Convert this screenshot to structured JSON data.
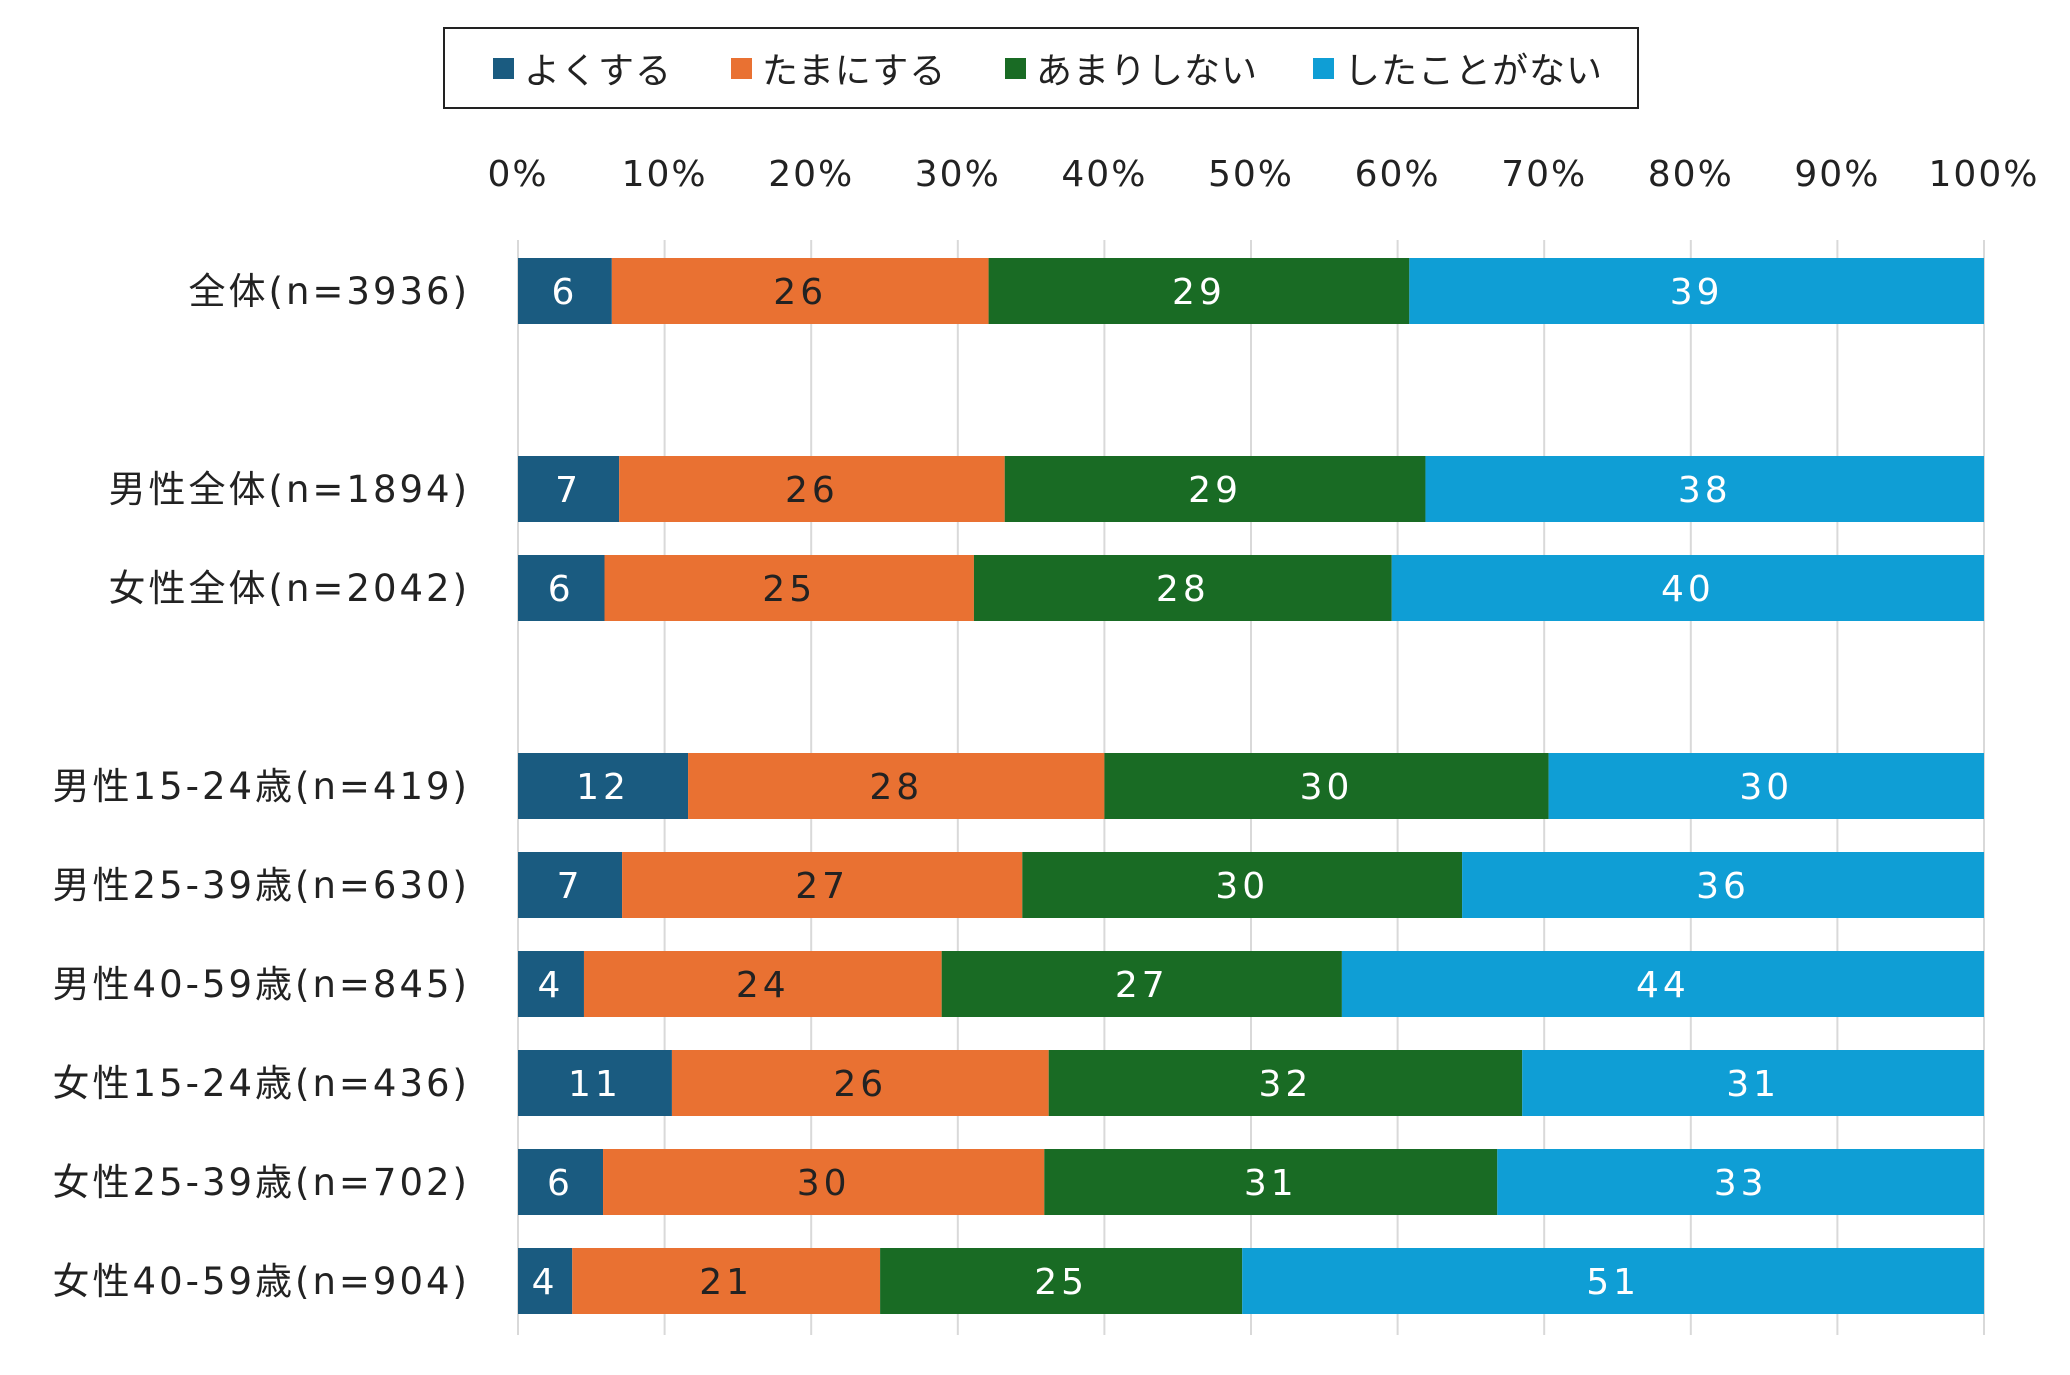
{
  "chart_data": {
    "type": "bar",
    "orientation": "horizontal",
    "stacked": true,
    "percent": true,
    "xlim": [
      0,
      100
    ],
    "x_ticks": [
      "0%",
      "10%",
      "20%",
      "30%",
      "40%",
      "50%",
      "60%",
      "70%",
      "80%",
      "90%",
      "100%"
    ],
    "grid": true,
    "legend_position": "top",
    "categories": [
      "全体(n=3936)",
      "",
      "男性全体(n=1894)",
      "女性全体(n=2042)",
      "",
      "男性15-24歳(n=419)",
      "男性25-39歳(n=630)",
      "男性40-59歳(n=845)",
      "女性15-24歳(n=436)",
      "女性25-39歳(n=702)",
      "女性40-59歳(n=904)"
    ],
    "series": [
      {
        "name": "よくする",
        "color": "#1a5b80",
        "values": [
          6,
          null,
          7,
          6,
          null,
          12,
          7,
          4,
          11,
          6,
          4
        ],
        "fractions": [
          6.4,
          null,
          6.9,
          5.9,
          null,
          11.6,
          7.1,
          4.5,
          10.5,
          5.8,
          3.7
        ]
      },
      {
        "name": "たまにする",
        "color": "#e97132",
        "values": [
          26,
          null,
          26,
          25,
          null,
          28,
          27,
          24,
          26,
          30,
          21
        ],
        "fractions": [
          25.7,
          null,
          26.3,
          25.2,
          null,
          28.4,
          27.3,
          24.4,
          25.7,
          30.1,
          21.0
        ]
      },
      {
        "name": "あまりしない",
        "color": "#196b24",
        "values": [
          29,
          null,
          29,
          28,
          null,
          30,
          30,
          27,
          32,
          31,
          25
        ],
        "fractions": [
          28.7,
          null,
          28.7,
          28.5,
          null,
          30.3,
          30.0,
          27.3,
          32.3,
          30.9,
          24.7
        ]
      },
      {
        "name": "したことがない",
        "color": "#0f9ed5",
        "values": [
          39,
          null,
          38,
          40,
          null,
          30,
          36,
          44,
          31,
          33,
          51
        ],
        "fractions": [
          39.2,
          null,
          38.1,
          40.4,
          null,
          29.7,
          35.6,
          43.8,
          31.5,
          33.2,
          50.6
        ]
      }
    ]
  }
}
